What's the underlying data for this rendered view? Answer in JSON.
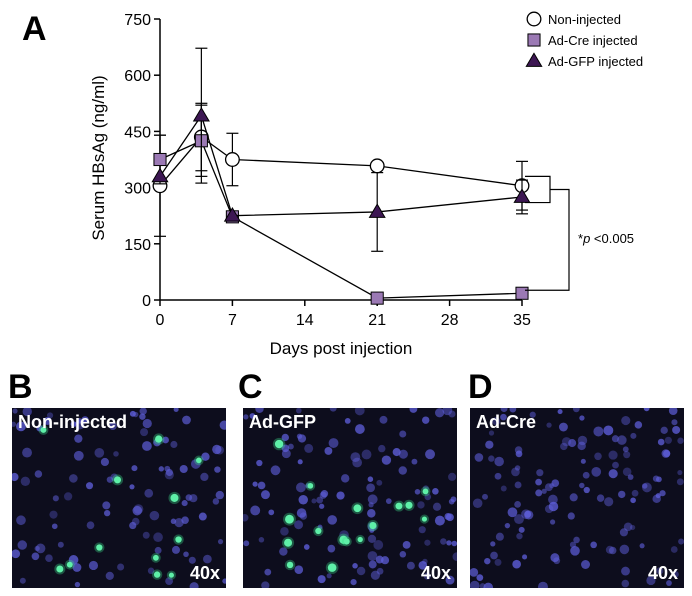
{
  "panels": {
    "a": "A",
    "b": "B",
    "c": "C",
    "d": "D"
  },
  "chart_data": {
    "type": "line",
    "xlabel": "Days post injection",
    "ylabel": "Serum HBsAg (ng/ml)",
    "xlim": [
      0,
      35
    ],
    "ylim": [
      0,
      750
    ],
    "x_ticks": [
      0,
      7,
      14,
      21,
      28,
      35
    ],
    "y_ticks": [
      0,
      150,
      300,
      450,
      600,
      750
    ],
    "grid": false,
    "legend_position": "top-right",
    "x": [
      0,
      4,
      7,
      21,
      35
    ],
    "series": [
      {
        "name": "Non-injected",
        "marker": "circle",
        "color": "#ffffff",
        "values": [
          305,
          435,
          375,
          358,
          305
        ],
        "error": [
          135,
          90,
          70,
          0,
          65
        ]
      },
      {
        "name": "Ad-Cre injected",
        "marker": "square",
        "color": "#9b79b4",
        "values": [
          375,
          425,
          222,
          5,
          18
        ],
        "error": [
          65,
          95,
          0,
          0,
          0
        ]
      },
      {
        "name": "Ad-GFP injected",
        "marker": "triangle",
        "color": "#3d1753",
        "values": [
          330,
          492,
          225,
          235,
          275
        ],
        "error": [
          0,
          180,
          0,
          105,
          45
        ]
      }
    ],
    "annotation": {
      "italic": "p",
      "prefix": "*",
      "suffix": " <0.005"
    }
  },
  "micrographs": [
    {
      "label": "Non-injected",
      "magnification": "40x"
    },
    {
      "label": "Ad-GFP",
      "magnification": "40x"
    },
    {
      "label": "Ad-Cre",
      "magnification": "40x"
    }
  ]
}
